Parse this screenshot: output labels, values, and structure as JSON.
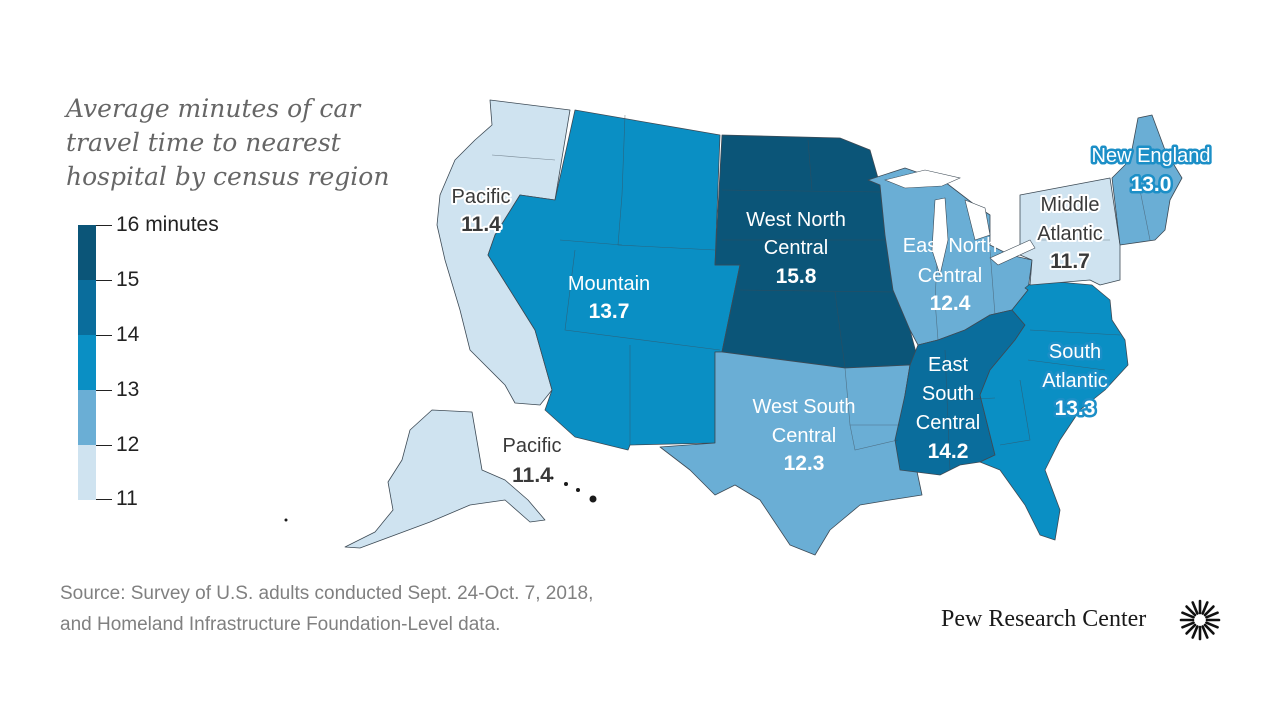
{
  "title": {
    "lines": [
      "Average minutes of car",
      "travel time to nearest",
      "hospital by census region"
    ]
  },
  "legend": {
    "labels": [
      "16 minutes",
      "15",
      "14",
      "13",
      "12",
      "11"
    ],
    "bins": [
      {
        "from": 15,
        "to": 16,
        "color": "#0b5578"
      },
      {
        "from": 14,
        "to": 15,
        "color": "#0a6d9c"
      },
      {
        "from": 13,
        "to": 14,
        "color": "#0a8fc4"
      },
      {
        "from": 12,
        "to": 13,
        "color": "#6aaed5"
      },
      {
        "from": 11,
        "to": 12,
        "color": "#cfe3f0"
      }
    ]
  },
  "map_data": {
    "type": "choropleth",
    "regions": [
      {
        "id": "pacific",
        "label": [
          "Pacific"
        ],
        "value": "11.4",
        "minutes": 11.4,
        "color": "#cfe3f0"
      },
      {
        "id": "pacific-alaska",
        "label": [
          "Pacific"
        ],
        "value": "11.4",
        "minutes": 11.4,
        "color": "#cfe3f0"
      },
      {
        "id": "mountain",
        "label": [
          "Mountain"
        ],
        "value": "13.7",
        "minutes": 13.7,
        "color": "#0a8fc4"
      },
      {
        "id": "west-north-central",
        "label": [
          "West North",
          "Central"
        ],
        "value": "15.8",
        "minutes": 15.8,
        "color": "#0b5578"
      },
      {
        "id": "west-south-central",
        "label": [
          "West South",
          "Central"
        ],
        "value": "12.3",
        "minutes": 12.3,
        "color": "#6aaed5"
      },
      {
        "id": "east-north-central",
        "label": [
          "East North",
          "Central"
        ],
        "value": "12.4",
        "minutes": 12.4,
        "color": "#6aaed5"
      },
      {
        "id": "east-south-central",
        "label": [
          "East",
          "South",
          "Central"
        ],
        "value": "14.2",
        "minutes": 14.2,
        "color": "#0a6d9c"
      },
      {
        "id": "south-atlantic",
        "label": [
          "South",
          "Atlantic"
        ],
        "value": "13.3",
        "minutes": 13.3,
        "color": "#0a8fc4"
      },
      {
        "id": "middle-atlantic",
        "label": [
          "Middle",
          "Atlantic"
        ],
        "value": "11.7",
        "minutes": 11.7,
        "color": "#cfe3f0"
      },
      {
        "id": "new-england",
        "label": [
          "New England"
        ],
        "value": "13.0",
        "minutes": 13.0,
        "color": "#6aaed5"
      }
    ]
  },
  "source": {
    "lines": [
      "Source: Survey of U.S. adults conducted Sept. 24-Oct. 7, 2018,",
      "and Homeland Infrastructure Foundation-Level data."
    ]
  },
  "brand": {
    "name": "Pew Research Center",
    "logo_icon": "pew-sunburst-icon"
  }
}
